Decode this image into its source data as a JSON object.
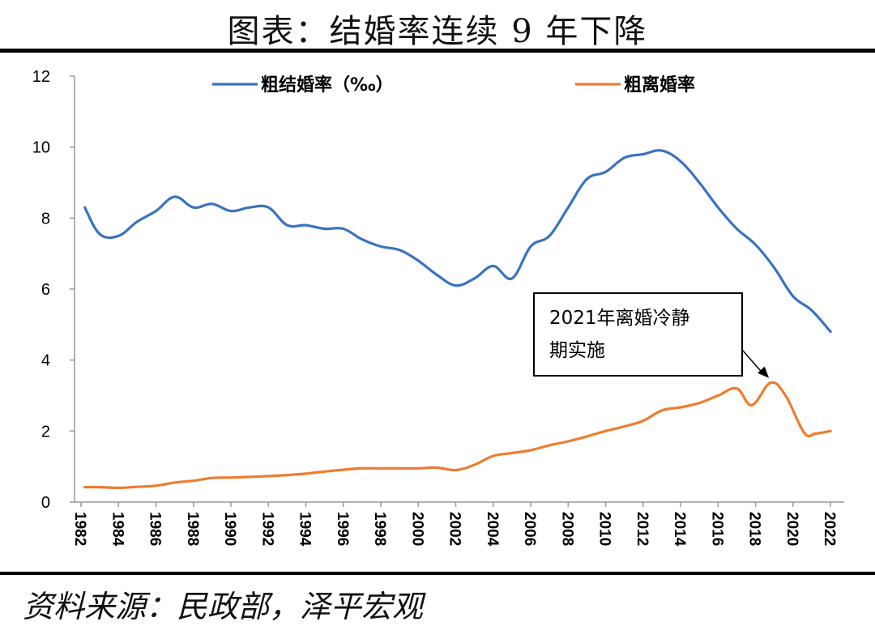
{
  "title": "图表：结婚率连续 9 年下降",
  "source": "资料来源：民政部，泽平宏观",
  "chart_data": {
    "type": "line",
    "title": "",
    "xlabel": "",
    "ylabel": "",
    "ylim": [
      0,
      12
    ],
    "yticks": [
      0,
      2,
      4,
      6,
      8,
      10,
      12
    ],
    "xticks": [
      "1982",
      "1984",
      "1986",
      "1988",
      "1990",
      "1992",
      "1994",
      "1996",
      "1998",
      "2000",
      "2002",
      "2004",
      "2006",
      "2008",
      "2010",
      "2012",
      "2014",
      "2016",
      "2018",
      "2020",
      "2022"
    ],
    "xlim": [
      1982,
      2022.5
    ],
    "grid": false,
    "legend": "top",
    "series": [
      {
        "name": "粗结婚率（‰）",
        "color": "#3a73bf",
        "points": [
          [
            1982.2,
            8.3
          ],
          [
            1983,
            7.55
          ],
          [
            1984,
            7.5
          ],
          [
            1985,
            7.9
          ],
          [
            1986,
            8.2
          ],
          [
            1987,
            8.6
          ],
          [
            1988,
            8.3
          ],
          [
            1989,
            8.4
          ],
          [
            1990,
            8.2
          ],
          [
            1991,
            8.3
          ],
          [
            1992,
            8.3
          ],
          [
            1993,
            7.8
          ],
          [
            1994,
            7.8
          ],
          [
            1995,
            7.7
          ],
          [
            1996,
            7.7
          ],
          [
            1997,
            7.4
          ],
          [
            1998,
            7.2
          ],
          [
            1999,
            7.1
          ],
          [
            2000,
            6.8
          ],
          [
            2001,
            6.4
          ],
          [
            2002,
            6.1
          ],
          [
            2003,
            6.3
          ],
          [
            2004,
            6.65
          ],
          [
            2005,
            6.3
          ],
          [
            2006,
            7.2
          ],
          [
            2007,
            7.5
          ],
          [
            2008,
            8.3
          ],
          [
            2009,
            9.1
          ],
          [
            2010,
            9.3
          ],
          [
            2011,
            9.7
          ],
          [
            2012,
            9.8
          ],
          [
            2013,
            9.9
          ],
          [
            2014,
            9.6
          ],
          [
            2015,
            9.0
          ],
          [
            2016,
            8.3
          ],
          [
            2017,
            7.7
          ],
          [
            2018,
            7.25
          ],
          [
            2019,
            6.6
          ],
          [
            2020,
            5.8
          ],
          [
            2021,
            5.4
          ],
          [
            2022,
            4.8
          ]
        ]
      },
      {
        "name": "粗离婚率",
        "color": "#ed7d31",
        "points": [
          [
            1982.2,
            0.42
          ],
          [
            1983,
            0.42
          ],
          [
            1984,
            0.4
          ],
          [
            1985,
            0.43
          ],
          [
            1986,
            0.46
          ],
          [
            1987,
            0.55
          ],
          [
            1988,
            0.6
          ],
          [
            1989,
            0.68
          ],
          [
            1990,
            0.69
          ],
          [
            1991,
            0.71
          ],
          [
            1992,
            0.73
          ],
          [
            1993,
            0.76
          ],
          [
            1994,
            0.8
          ],
          [
            1995,
            0.86
          ],
          [
            1996,
            0.91
          ],
          [
            1997,
            0.95
          ],
          [
            1998,
            0.95
          ],
          [
            1999,
            0.95
          ],
          [
            2000,
            0.95
          ],
          [
            2001,
            0.97
          ],
          [
            2002,
            0.9
          ],
          [
            2003,
            1.05
          ],
          [
            2004,
            1.3
          ],
          [
            2005,
            1.38
          ],
          [
            2006,
            1.46
          ],
          [
            2007,
            1.6
          ],
          [
            2008,
            1.71
          ],
          [
            2009,
            1.85
          ],
          [
            2010,
            2.0
          ],
          [
            2011,
            2.13
          ],
          [
            2012,
            2.29
          ],
          [
            2013,
            2.58
          ],
          [
            2014,
            2.67
          ],
          [
            2015,
            2.79
          ],
          [
            2016,
            3.0
          ],
          [
            2017,
            3.2
          ],
          [
            2017.8,
            2.73
          ],
          [
            2018.8,
            3.36
          ],
          [
            2019.6,
            3.0
          ],
          [
            2020.6,
            1.95
          ],
          [
            2021.2,
            1.93
          ],
          [
            2022,
            2.0
          ]
        ]
      }
    ],
    "annotations": [
      {
        "text_line1": "2021年离婚冷静",
        "text_line2": "期实施",
        "target": [
          2018.8,
          3.36
        ]
      }
    ]
  }
}
